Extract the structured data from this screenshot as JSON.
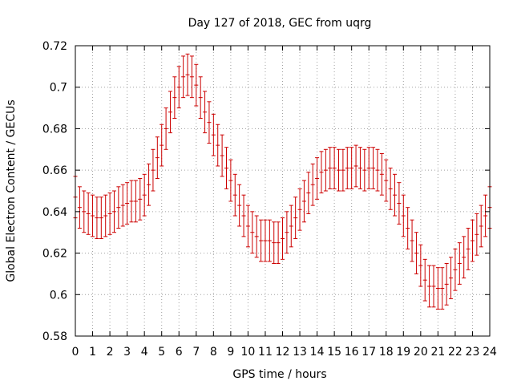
{
  "colors": {
    "series": "#cc0000",
    "grid": "#a0a0a0",
    "axis": "#000000",
    "background": "#ffffff"
  },
  "chart_data": {
    "type": "errorbar",
    "title": "Day 127 of 2018, GEC from uqrg",
    "xlabel": "GPS time / hours",
    "ylabel": "Global Electron Content / GECUs",
    "xlim": [
      0,
      24
    ],
    "ylim": [
      0.58,
      0.72
    ],
    "grid": true,
    "xticks": [
      0,
      1,
      2,
      3,
      4,
      5,
      6,
      7,
      8,
      9,
      10,
      11,
      12,
      13,
      14,
      15,
      16,
      17,
      18,
      19,
      20,
      21,
      22,
      23,
      24
    ],
    "yticks": [
      0.58,
      0.6,
      0.62,
      0.64,
      0.66,
      0.68,
      0.7,
      0.72
    ],
    "ytick_labels": [
      "0.58",
      "0.6",
      "0.62",
      "0.64",
      "0.66",
      "0.68",
      "0.7",
      "0.72"
    ],
    "error": 0.01,
    "series": [
      {
        "name": "GEC",
        "x": [
          0,
          0.25,
          0.5,
          0.75,
          1,
          1.25,
          1.5,
          1.75,
          2,
          2.25,
          2.5,
          2.75,
          3,
          3.25,
          3.5,
          3.75,
          4,
          4.25,
          4.5,
          4.75,
          5,
          5.25,
          5.5,
          5.75,
          6,
          6.25,
          6.5,
          6.75,
          7,
          7.25,
          7.5,
          7.75,
          8,
          8.25,
          8.5,
          8.75,
          9,
          9.25,
          9.5,
          9.75,
          10,
          10.25,
          10.5,
          10.75,
          11,
          11.25,
          11.5,
          11.75,
          12,
          12.25,
          12.5,
          12.75,
          13,
          13.25,
          13.5,
          13.75,
          14,
          14.25,
          14.5,
          14.75,
          15,
          15.25,
          15.5,
          15.75,
          16,
          16.25,
          16.5,
          16.75,
          17,
          17.25,
          17.5,
          17.75,
          18,
          18.25,
          18.5,
          18.75,
          19,
          19.25,
          19.5,
          19.75,
          20,
          20.25,
          20.5,
          20.75,
          21,
          21.25,
          21.5,
          21.75,
          22,
          22.25,
          22.5,
          22.75,
          23,
          23.25,
          23.5,
          23.75,
          24
        ],
        "y": [
          0.647,
          0.642,
          0.64,
          0.639,
          0.638,
          0.637,
          0.637,
          0.638,
          0.639,
          0.64,
          0.642,
          0.643,
          0.644,
          0.645,
          0.645,
          0.646,
          0.648,
          0.653,
          0.66,
          0.666,
          0.672,
          0.68,
          0.688,
          0.695,
          0.7,
          0.705,
          0.706,
          0.705,
          0.701,
          0.695,
          0.688,
          0.683,
          0.677,
          0.672,
          0.667,
          0.661,
          0.655,
          0.648,
          0.643,
          0.638,
          0.633,
          0.63,
          0.628,
          0.626,
          0.626,
          0.626,
          0.625,
          0.625,
          0.627,
          0.63,
          0.633,
          0.637,
          0.641,
          0.645,
          0.649,
          0.653,
          0.656,
          0.659,
          0.66,
          0.661,
          0.661,
          0.66,
          0.66,
          0.661,
          0.661,
          0.662,
          0.661,
          0.66,
          0.661,
          0.661,
          0.66,
          0.658,
          0.655,
          0.651,
          0.648,
          0.644,
          0.638,
          0.632,
          0.626,
          0.62,
          0.614,
          0.607,
          0.604,
          0.604,
          0.603,
          0.603,
          0.605,
          0.608,
          0.612,
          0.615,
          0.618,
          0.622,
          0.626,
          0.629,
          0.633,
          0.638,
          0.642
        ]
      }
    ]
  }
}
